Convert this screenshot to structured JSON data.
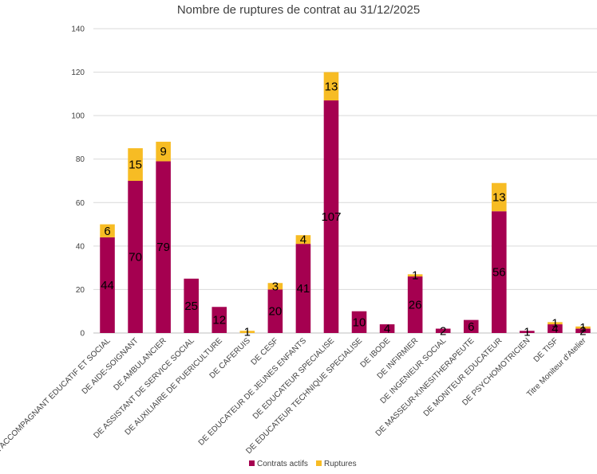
{
  "chart_data": {
    "type": "bar",
    "stacked": true,
    "title": "Nombre de ruptures de contrat au 31/12/2025",
    "xlabel": "",
    "ylabel": "",
    "ylim": [
      0,
      140
    ],
    "yticks": [
      0,
      20,
      40,
      60,
      80,
      100,
      120,
      140
    ],
    "grid": true,
    "legend_position": "bottom",
    "categories": [
      "DE ACCOMPAGNANT EDUCATIF ET SOCIAL",
      "DE AIDE-SOIGNANT",
      "DE AMBULANCIER",
      "DE ASSISTANT DE SERVICE SOCIAL",
      "DE AUXILIAIRE DE PUERICULTURE",
      "DE CAFERUIS",
      "DE CESF",
      "DE EDUCATEUR DE JEUNES ENFANTS",
      "DE EDUCATEUR SPECIALISE",
      "DE EDUCATEUR TECHNIQUE SPECIALISE",
      "DE IBODE",
      "DE INFIRMIER",
      "DE INGENIEUR SOCIAL",
      "DE MASSEUR-KINESITHERAPEUTE",
      "DE MONITEUR EDUCATEUR",
      "DE PSYCHOMOTRICIEN",
      "DE TISF",
      "Titre Moniteur d'Atelier"
    ],
    "series": [
      {
        "name": "Contrats actifs",
        "color": "#A50050",
        "values": [
          44,
          70,
          79,
          25,
          12,
          0,
          20,
          41,
          107,
          10,
          4,
          26,
          2,
          6,
          56,
          1,
          4,
          2
        ]
      },
      {
        "name": "Ruptures",
        "color": "#F7BC24",
        "values": [
          6,
          15,
          9,
          0,
          0,
          1,
          3,
          4,
          13,
          0,
          0,
          1,
          0,
          0,
          13,
          0,
          1,
          1
        ]
      }
    ]
  }
}
